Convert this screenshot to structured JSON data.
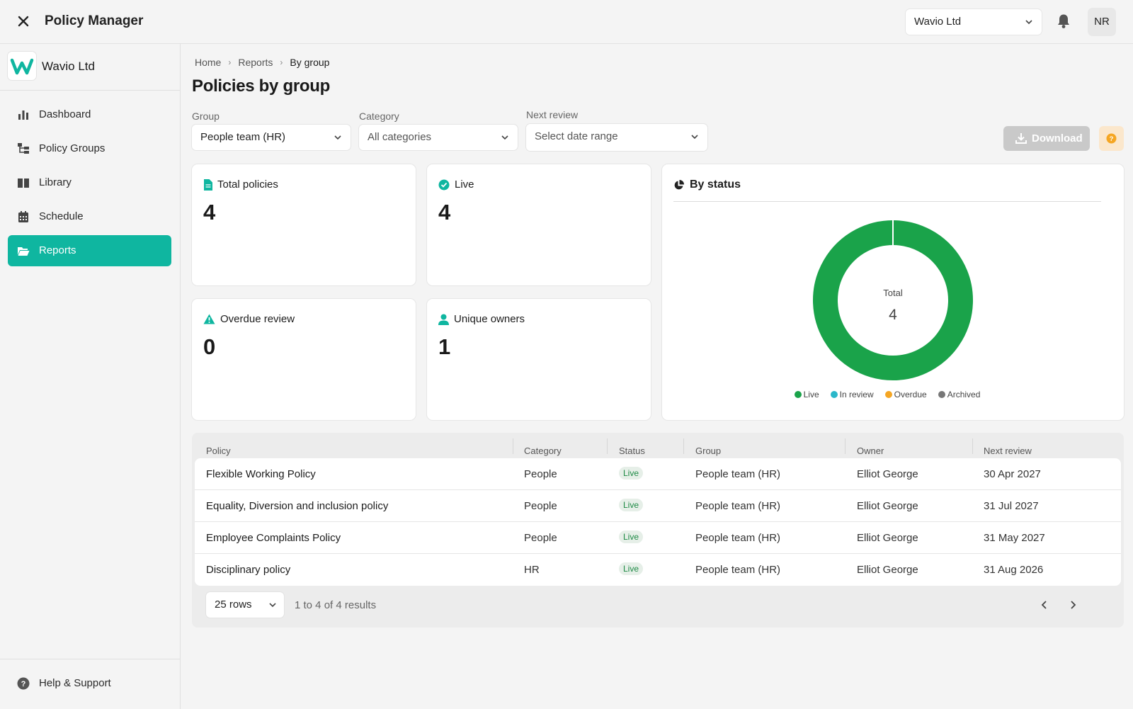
{
  "app": {
    "title": "Policy Manager",
    "org_select": "Wavio Ltd",
    "avatar_initials": "NR"
  },
  "sidebar": {
    "brand_name": "Wavio Ltd",
    "brand_color": "#0fb6a0",
    "items": [
      {
        "label": "Dashboard",
        "icon": "bar-chart-icon"
      },
      {
        "label": "Policy Groups",
        "icon": "hierarchy-icon"
      },
      {
        "label": "Library",
        "icon": "book-icon"
      },
      {
        "label": "Schedule",
        "icon": "calendar-icon"
      },
      {
        "label": "Reports",
        "icon": "folder-open-icon",
        "active": true
      }
    ],
    "help_label": "Help & Support"
  },
  "breadcrumb": [
    "Home",
    "Reports",
    "By group"
  ],
  "page": {
    "title": "Policies by group"
  },
  "filters": {
    "group": {
      "label": "Group",
      "value": "People team (HR)"
    },
    "category": {
      "label": "Category",
      "value": "All categories"
    },
    "review": {
      "label": "Next review",
      "placeholder": "Select date range"
    }
  },
  "actions": {
    "download": "Download"
  },
  "stats": {
    "total": {
      "label": "Total policies",
      "value": "4"
    },
    "live": {
      "label": "Live",
      "value": "4"
    },
    "overdue": {
      "label": "Overdue review",
      "value": "0"
    },
    "owners": {
      "label": "Unique owners",
      "value": "1"
    }
  },
  "chart_data": {
    "type": "pie",
    "title": "By status",
    "center_label": "Total",
    "center_value": "4",
    "categories": [
      "Live",
      "In review",
      "Overdue",
      "Archived"
    ],
    "values": [
      4,
      0,
      0,
      0
    ],
    "colors": [
      "#1aa34a",
      "#2ab7c9",
      "#f5a623",
      "#777777"
    ],
    "legend_position": "bottom"
  },
  "table": {
    "columns": [
      "Policy",
      "Category",
      "Status",
      "Group",
      "Owner",
      "Next review"
    ],
    "rows": [
      [
        "Flexible Working Policy",
        "People",
        "Live",
        "People team (HR)",
        "Elliot George",
        "30 Apr 2027"
      ],
      [
        "Equality, Diversion and inclusion policy",
        "People",
        "Live",
        "People team (HR)",
        "Elliot George",
        "31 Jul 2027"
      ],
      [
        "Employee Complaints Policy",
        "People",
        "Live",
        "People team (HR)",
        "Elliot George",
        "31 May 2027"
      ],
      [
        "Disciplinary policy",
        "HR",
        "Live",
        "People team (HR)",
        "Elliot George",
        "31 Aug 2026"
      ]
    ],
    "rows_select": "25 rows",
    "results_text": "1 to 4 of 4 results"
  }
}
